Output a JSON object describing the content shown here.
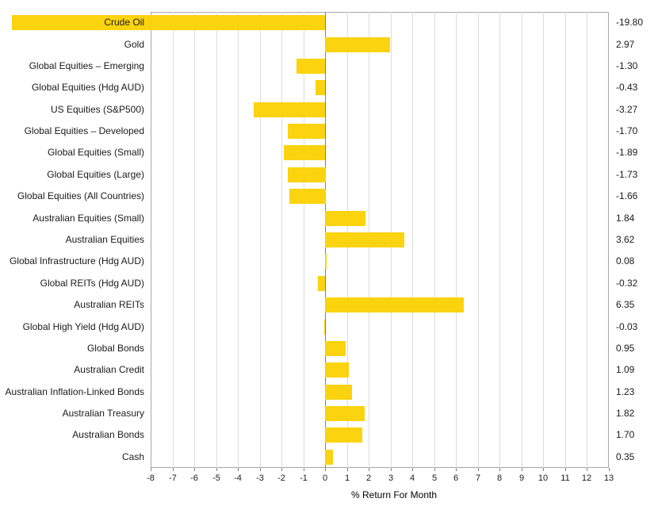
{
  "chart_data": {
    "type": "bar",
    "orientation": "horizontal",
    "title": "",
    "xlabel": "% Return For Month",
    "ylabel": "",
    "xlim": [
      -8,
      13
    ],
    "xticks": [
      -8,
      -7,
      -6,
      -5,
      -4,
      -3,
      -2,
      -1,
      0,
      1,
      2,
      3,
      4,
      5,
      6,
      7,
      8,
      9,
      10,
      11,
      12,
      13
    ],
    "grid": true,
    "legend": "none",
    "categories": [
      "Crude Oil",
      "Gold",
      "Global Equities – Emerging",
      "Global Equities (Hdg AUD)",
      "US Equities (S&P500)",
      "Global Equities – Developed",
      "Global Equities (Small)",
      "Global Equities (Large)",
      "Global Equities (All Countries)",
      "Australian Equities (Small)",
      "Australian Equities",
      "Global Infrastructure (Hdg AUD)",
      "Global REITs (Hdg AUD)",
      "Australian REITs",
      "Global High Yield (Hdg AUD)",
      "Global Bonds",
      "Australian Credit",
      "Australian Inflation-Linked Bonds",
      "Australian Treasury",
      "Australian Bonds",
      "Cash"
    ],
    "values": [
      -19.8,
      2.97,
      -1.3,
      -0.43,
      -3.27,
      -1.7,
      -1.89,
      -1.73,
      -1.66,
      1.84,
      3.62,
      0.08,
      -0.32,
      6.35,
      -0.03,
      0.95,
      1.09,
      1.23,
      1.82,
      1.7,
      0.35
    ],
    "value_labels": [
      "-19.80",
      "2.97",
      "-1.30",
      "-0.43",
      "-3.27",
      "-1.70",
      "-1.89",
      "-1.73",
      "-1.66",
      "1.84",
      "3.62",
      "0.08",
      "-0.32",
      "6.35",
      "-0.03",
      "0.95",
      "1.09",
      "1.23",
      "1.82",
      "1.70",
      "0.35"
    ],
    "colors": {
      "bar": "#fbd30e",
      "gridline": "#dcdcdc",
      "border": "#a6a6a6",
      "zero_line": "#808080",
      "tick_mark": "#808080",
      "text": "#1a1a1a"
    }
  }
}
